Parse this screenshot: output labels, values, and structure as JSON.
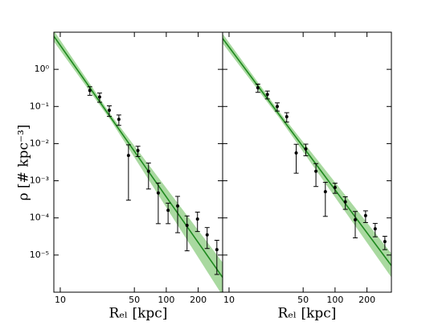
{
  "chart_data": [
    {
      "type": "scatter",
      "log_x": true,
      "log_y": true,
      "ylabel": "ρ [# kpc⁻³]",
      "xlabel": "Rₑₗ [kpc]",
      "xlim": [
        8.7,
        340
      ],
      "ylim": [
        1e-06,
        10
      ],
      "xticks": [
        10,
        50,
        100,
        200
      ],
      "yticks": [
        {
          "value": 1e-05,
          "label": "10⁻⁵"
        },
        {
          "value": 0.0001,
          "label": "10⁻⁴"
        },
        {
          "value": 0.001,
          "label": "10⁻³"
        },
        {
          "value": 0.01,
          "label": "10⁻²"
        },
        {
          "value": 0.1,
          "label": "10⁻¹"
        },
        {
          "value": 1,
          "label": "10⁰"
        }
      ],
      "x": [
        19,
        23.5,
        29,
        35.7,
        44,
        54,
        68,
        84,
        104,
        128,
        157,
        197,
        243,
        300
      ],
      "values": [
        0.27,
        0.18,
        0.079,
        0.045,
        0.0048,
        0.0065,
        0.0018,
        0.00047,
        0.00016,
        0.00021,
        6.3e-05,
        9.3e-05,
        3.5e-05,
        1.4e-05
      ],
      "errors": [
        0.07,
        0.05,
        0.025,
        0.014,
        0.0045,
        0.002,
        0.0012,
        0.0004,
        9e-05,
        0.00017,
        5e-05,
        5e-05,
        2e-05,
        1.1e-05
      ],
      "color": "#000000",
      "fit": {
        "x": [
          8.7,
          30,
          340
        ],
        "y": [
          7.8,
          0.05,
          2.5e-06
        ],
        "upper": [
          11,
          0.06,
          6.3e-06
        ],
        "lower": [
          5.6,
          0.042,
          8e-07
        ],
        "color": "#1f8a1f",
        "band_color": "#a9d9a0"
      }
    },
    {
      "type": "scatter",
      "log_x": true,
      "log_y": true,
      "xlabel": "Rₑₗ [kpc]",
      "xlim": [
        8.7,
        340
      ],
      "ylim": [
        1e-06,
        10
      ],
      "xticks": [
        10,
        50,
        100,
        200
      ],
      "x": [
        18.7,
        23,
        28.5,
        35,
        43,
        53,
        66,
        81,
        100,
        125,
        155,
        194,
        239,
        295
      ],
      "values": [
        0.32,
        0.21,
        0.1,
        0.053,
        0.0056,
        0.0072,
        0.0018,
        0.00051,
        0.00066,
        0.00027,
        8.9e-05,
        0.000115,
        5.1e-05,
        2.3e-05
      ],
      "errors": [
        0.08,
        0.05,
        0.025,
        0.015,
        0.004,
        0.0025,
        0.0011,
        0.0004,
        0.0002,
        0.0001,
        6e-05,
        4e-05,
        2e-05,
        9e-06
      ],
      "color": "#000000",
      "fit": {
        "x": [
          8.7,
          30,
          340
        ],
        "y": [
          6.8,
          0.058,
          5.2e-06
        ],
        "upper": [
          9.1,
          0.07,
          1.1e-05
        ],
        "lower": [
          5.0,
          0.048,
          2.5e-06
        ],
        "color": "#1f8a1f",
        "band_color": "#a9d9a0"
      }
    }
  ]
}
